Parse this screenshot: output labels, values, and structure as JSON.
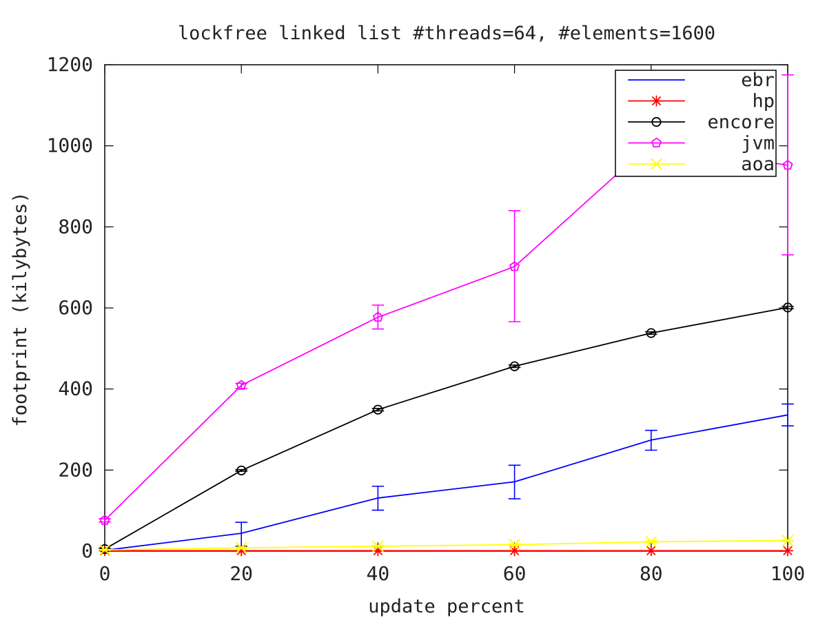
{
  "chart_data": {
    "type": "line",
    "title": "lockfree linked list #threads=64, #elements=1600",
    "xlabel": "update percent",
    "ylabel": "footprint (kilybytes)",
    "x": [
      0,
      20,
      40,
      60,
      80,
      100
    ],
    "xlim": [
      0,
      100
    ],
    "ylim": [
      0,
      1200
    ],
    "xticks": [
      0,
      20,
      40,
      60,
      80,
      100
    ],
    "yticks": [
      0,
      200,
      400,
      600,
      800,
      1000,
      1200
    ],
    "grid": false,
    "legend_position": "top-right",
    "series": [
      {
        "name": "ebr",
        "color": "#0000ff",
        "marker": "none",
        "values": [
          2,
          44,
          131,
          171,
          274,
          336
        ],
        "err_low": [
          1,
          12,
          101,
          129,
          249,
          309
        ],
        "err_high": [
          3,
          71,
          160,
          212,
          298,
          363
        ]
      },
      {
        "name": "hp",
        "color": "#ff0000",
        "marker": "asterisk",
        "values": [
          1,
          1,
          1,
          1,
          1,
          1
        ],
        "err_low": [
          1,
          1,
          1,
          1,
          1,
          1
        ],
        "err_high": [
          1,
          1,
          1,
          1,
          1,
          1
        ]
      },
      {
        "name": "encore",
        "color": "#000000",
        "marker": "circle",
        "values": [
          5,
          199,
          349,
          456,
          538,
          601
        ],
        "err_low": [
          3,
          197,
          346,
          453,
          535,
          598
        ],
        "err_high": [
          7,
          201,
          352,
          459,
          541,
          604
        ]
      },
      {
        "name": "jvm",
        "color": "#ff00ff",
        "marker": "pentagon",
        "values": [
          76,
          409,
          577,
          702,
          1006,
          952
        ],
        "err_low": [
          72,
          401,
          548,
          566,
          982,
          731
        ],
        "err_high": [
          80,
          414,
          607,
          840,
          1031,
          1175
        ]
      },
      {
        "name": "aoa",
        "color": "#ffff00",
        "marker": "x",
        "values": [
          3,
          8,
          12,
          16,
          23,
          26
        ],
        "err_low": [
          2,
          6,
          10,
          14,
          21,
          24
        ],
        "err_high": [
          4,
          10,
          14,
          18,
          25,
          28
        ]
      }
    ]
  }
}
